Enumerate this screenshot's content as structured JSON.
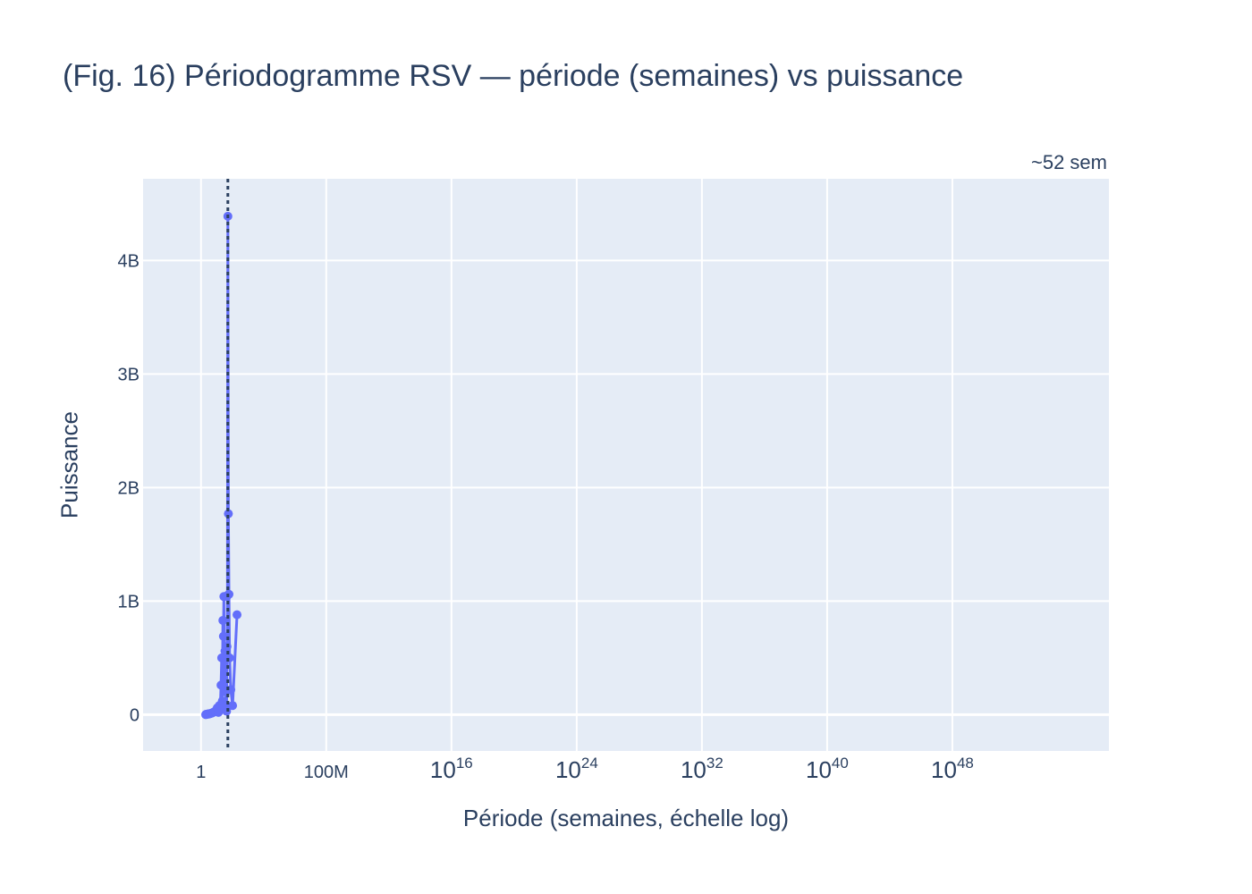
{
  "chart_data": {
    "type": "line",
    "title": "(Fig. 16) Périodogramme RSV — période (semaines) vs puissance",
    "xlabel": "Période (semaines, échelle log)",
    "ylabel": "Puissance",
    "x_scale": "log",
    "xlim_log10": [
      -3.7,
      58
    ],
    "ylim": [
      -320000000,
      4720000000
    ],
    "grid": true,
    "x_ticks": [
      {
        "value_log10": 0,
        "label": "1",
        "sup": ""
      },
      {
        "value_log10": 8,
        "label": "100M",
        "sup": ""
      },
      {
        "value_log10": 16,
        "label": "10",
        "sup": "16"
      },
      {
        "value_log10": 24,
        "label": "10",
        "sup": "24"
      },
      {
        "value_log10": 32,
        "label": "10",
        "sup": "32"
      },
      {
        "value_log10": 40,
        "label": "10",
        "sup": "40"
      },
      {
        "value_log10": 48,
        "label": "10",
        "sup": "48"
      }
    ],
    "y_ticks": [
      {
        "value": 0,
        "label": "0"
      },
      {
        "value": 1000000000,
        "label": "1B"
      },
      {
        "value": 2000000000,
        "label": "2B"
      },
      {
        "value": 3000000000,
        "label": "3B"
      },
      {
        "value": 4000000000,
        "label": "4B"
      }
    ],
    "series": [
      {
        "color": "#636efa",
        "points": [
          [
            2.0,
            0
          ],
          [
            2.1,
            3000000
          ],
          [
            2.3,
            2000000
          ],
          [
            2.5,
            5000000
          ],
          [
            2.8,
            4000000
          ],
          [
            3.1,
            8000000
          ],
          [
            3.5,
            6000000
          ],
          [
            4.0,
            10000000
          ],
          [
            4.5,
            12000000
          ],
          [
            5.2,
            15000000
          ],
          [
            6.0,
            20000000
          ],
          [
            7.0,
            25000000
          ],
          [
            8.0,
            30000000
          ],
          [
            9.5,
            40000000
          ],
          [
            11,
            60000000
          ],
          [
            13,
            20000000
          ],
          [
            15,
            80000000
          ],
          [
            17,
            50000000
          ],
          [
            19,
            260000000
          ],
          [
            21,
            500000000
          ],
          [
            23,
            120000000
          ],
          [
            25,
            830000000
          ],
          [
            27,
            690000000
          ],
          [
            29,
            1040000000
          ],
          [
            31,
            300000000
          ],
          [
            34,
            560000000
          ],
          [
            37,
            200000000
          ],
          [
            40,
            80000000
          ],
          [
            43,
            30000000
          ],
          [
            46,
            600000000
          ],
          [
            49,
            1050000000
          ],
          [
            52,
            4390000000
          ],
          [
            56,
            1770000000
          ],
          [
            61,
            1060000000
          ],
          [
            67,
            500000000
          ],
          [
            80,
            220000000
          ],
          [
            104,
            80000000
          ],
          [
            200,
            880000000
          ]
        ]
      }
    ],
    "annotation": {
      "x": 52,
      "label": "~52 sem",
      "line_color": "#2a3f5f"
    }
  }
}
